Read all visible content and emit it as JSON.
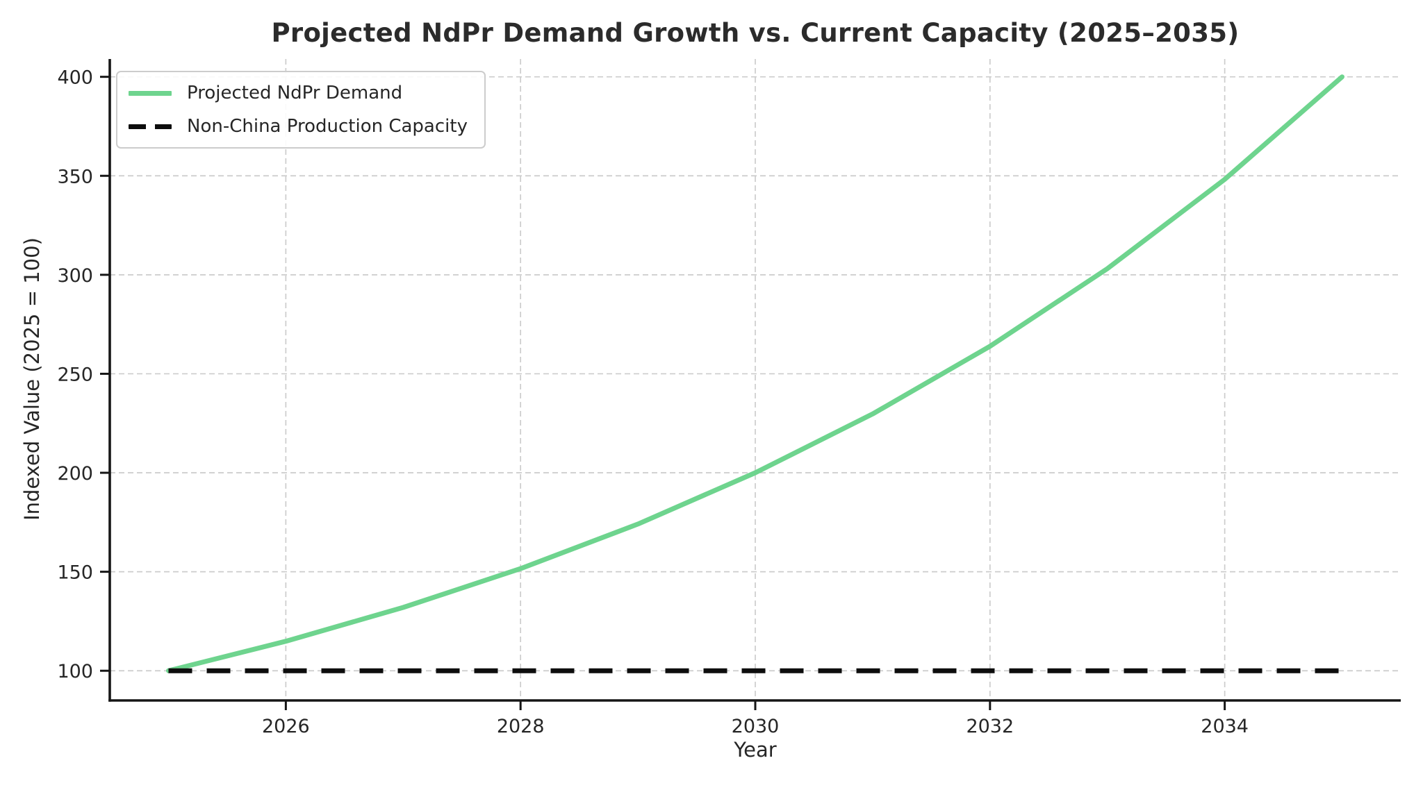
{
  "chart_data": {
    "type": "line",
    "title": "Projected NdPr Demand Growth vs. Current Capacity (2025–2035)",
    "xlabel": "Year",
    "ylabel": "Indexed Value (2025 = 100)",
    "x": [
      2025,
      2026,
      2027,
      2028,
      2029,
      2030,
      2031,
      2032,
      2033,
      2034,
      2035
    ],
    "series": [
      {
        "name": "Projected NdPr Demand",
        "values": [
          100.0,
          114.9,
          132.0,
          151.6,
          174.1,
          200.0,
          229.7,
          263.9,
          303.1,
          348.2,
          400.0
        ],
        "color": "#6ed48e",
        "style": "solid"
      },
      {
        "name": "Non-China Production Capacity",
        "values": [
          100,
          100,
          100,
          100,
          100,
          100,
          100,
          100,
          100,
          100,
          100
        ],
        "color": "#0d0d0d",
        "style": "dashed"
      }
    ],
    "xticks": [
      2026,
      2028,
      2030,
      2032,
      2034
    ],
    "yticks": [
      100,
      150,
      200,
      250,
      300,
      350,
      400
    ],
    "xlim": [
      2024.5,
      2035.5
    ],
    "ylim": [
      85,
      409
    ],
    "grid": true,
    "legend_position": "upper-left",
    "colors": {
      "grid": "#cccccc",
      "axis": "#161616",
      "tick_text": "#262626",
      "background": "#ffffff"
    }
  }
}
